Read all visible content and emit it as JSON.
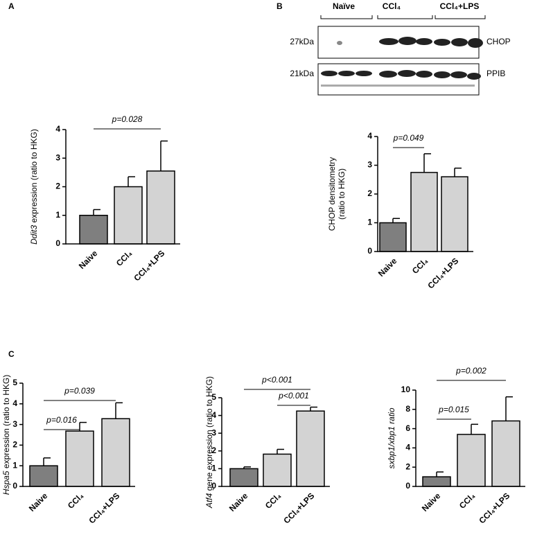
{
  "blot": {
    "panel": "B",
    "groups": [
      "Naïve",
      "CCl₄",
      "CCl₄+LPS"
    ],
    "sizes": [
      "27kDa",
      "21kDa"
    ],
    "proteins": [
      "CHOP",
      "PPIB"
    ]
  },
  "chart_data": [
    {
      "type": "bar",
      "panel": "A",
      "ylabel": [
        [
          {
            "text": "Ddit3",
            "italic": true
          },
          {
            "text": " expression (ratio to HKG)",
            "italic": false
          }
        ]
      ],
      "categories": [
        "Naive",
        "CCl₄",
        "CCl₄+LPS"
      ],
      "values": [
        1.0,
        2.0,
        2.55
      ],
      "errors": [
        0.2,
        0.35,
        1.05
      ],
      "colors": [
        "#7f7f7f",
        "#d3d3d3",
        "#d3d3d3"
      ],
      "ylim": [
        0,
        4
      ],
      "yticks": [
        0,
        1,
        2,
        3,
        4
      ],
      "brackets": [
        {
          "label": "p=0.028",
          "from": 0,
          "to": 2
        }
      ]
    },
    {
      "type": "bar",
      "ylabel": [
        [
          {
            "text": "CHOP densitometry",
            "italic": false
          }
        ],
        [
          {
            "text": "(ratio to HKG)",
            "italic": false
          }
        ]
      ],
      "categories": [
        "Naive",
        "CCl₄",
        "CCl₄+LPS"
      ],
      "values": [
        1.0,
        2.75,
        2.6
      ],
      "errors": [
        0.15,
        0.65,
        0.3
      ],
      "colors": [
        "#7f7f7f",
        "#d3d3d3",
        "#d3d3d3"
      ],
      "ylim": [
        0,
        4
      ],
      "yticks": [
        0,
        1,
        2,
        3,
        4
      ],
      "brackets": [
        {
          "label": "p=0.049",
          "from": 0,
          "to": 1
        }
      ]
    },
    {
      "type": "bar",
      "panel": "C",
      "ylabel": [
        [
          {
            "text": "Hspa5",
            "italic": true
          },
          {
            "text": " expression (ratio to HKG)",
            "italic": false
          }
        ]
      ],
      "categories": [
        "Naive",
        "CCl₄",
        "CCl₄+LPS"
      ],
      "values": [
        1.0,
        2.68,
        3.28
      ],
      "errors": [
        0.38,
        0.42,
        0.77
      ],
      "colors": [
        "#7f7f7f",
        "#d3d3d3",
        "#d3d3d3"
      ],
      "ylim": [
        0,
        5
      ],
      "yticks": [
        0,
        1,
        2,
        3,
        4,
        5
      ],
      "brackets": [
        {
          "label": "p=0.016",
          "from": 0,
          "to": 1
        },
        {
          "label": "p=0.039",
          "from": 0,
          "to": 2
        }
      ]
    },
    {
      "type": "bar",
      "ylabel": [
        [
          {
            "text": "Atf4",
            "italic": true
          },
          {
            "text": " gene expression (ratio to HKG)",
            "italic": false
          }
        ]
      ],
      "categories": [
        "Naive",
        "CCl₄",
        "CCl₄+LPS"
      ],
      "values": [
        1.0,
        1.82,
        4.25
      ],
      "errors": [
        0.1,
        0.27,
        0.22
      ],
      "colors": [
        "#7f7f7f",
        "#d3d3d3",
        "#d3d3d3"
      ],
      "ylim": [
        0,
        5
      ],
      "yticks": [
        0,
        1,
        2,
        3,
        4,
        5
      ],
      "brackets": [
        {
          "label": "p<0.001",
          "from": 1,
          "to": 2
        },
        {
          "label": "p<0.001",
          "from": 0,
          "to": 2
        }
      ]
    },
    {
      "type": "bar",
      "ylabel": [
        [
          {
            "text": "sxbp1/xbp1 ratio",
            "italic": true
          }
        ]
      ],
      "categories": [
        "Naive",
        "CCl₄",
        "CCl₄+LPS"
      ],
      "values": [
        1.0,
        5.4,
        6.8
      ],
      "errors": [
        0.5,
        1.05,
        2.5
      ],
      "colors": [
        "#7f7f7f",
        "#d3d3d3",
        "#d3d3d3"
      ],
      "ylim": [
        0,
        10
      ],
      "yticks": [
        0,
        2,
        4,
        6,
        8,
        10
      ],
      "brackets": [
        {
          "label": "p=0.015",
          "from": 0,
          "to": 1
        },
        {
          "label": "p=0.002",
          "from": 0,
          "to": 2
        }
      ]
    }
  ]
}
